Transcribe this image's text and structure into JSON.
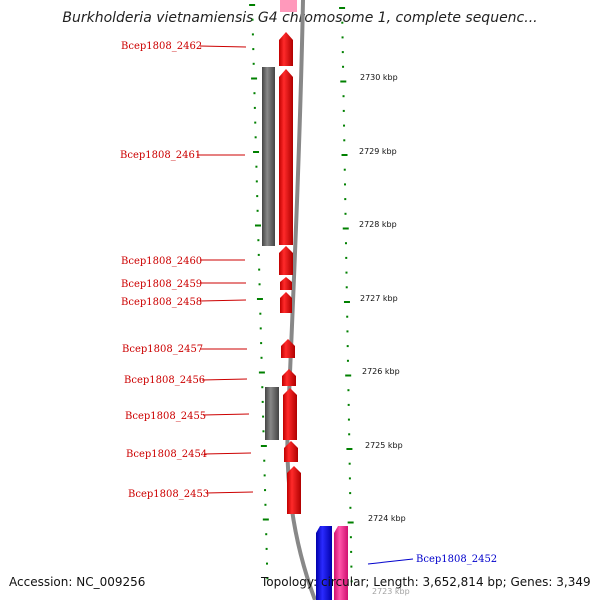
{
  "title": "Burkholderia vietnamiensis G4 chromosome 1, complete sequenc...",
  "accession": "Accession: NC_009256",
  "summary": "Topology: circular; Length: 3,652,814 bp; Genes: 3,349",
  "ticks": [
    "2730 kbp",
    "2729 kbp",
    "2728 kbp",
    "2727 kbp",
    "2726 kbp",
    "2725 kbp",
    "2724 kbp",
    "2723 kbp"
  ],
  "genes": [
    "Bcep1808_2462",
    "Bcep1808_2461",
    "Bcep1808_2460",
    "Bcep1808_2459",
    "Bcep1808_2458",
    "Bcep1808_2457",
    "Bcep1808_2456",
    "Bcep1808_2455",
    "Bcep1808_2454",
    "Bcep1808_2453",
    "Bcep1808_2452"
  ],
  "colors": {
    "forward_cds": "#ff0000",
    "pseudo": "#666666",
    "reverse_blue": "#0000ff",
    "reverse_pink": "#ff3399",
    "tick_green": "#008000",
    "label_red": "#cc0000",
    "label_blue": "#0000cc"
  }
}
